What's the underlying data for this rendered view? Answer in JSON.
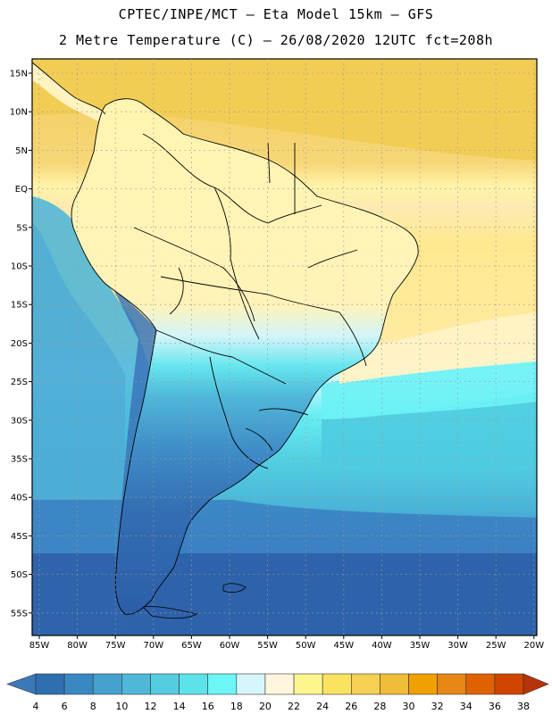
{
  "header": {
    "line1": "CPTEC/INPE/MCT –  Eta Model 15km – GFS",
    "line2": "2 Metre Temperature (C) – 26/08/2020 12UTC fct=208h"
  },
  "axes": {
    "lat_labels": [
      "15N",
      "10N",
      "5N",
      "EQ",
      "5S",
      "10S",
      "15S",
      "20S",
      "25S",
      "30S",
      "35S",
      "40S",
      "45S",
      "50S",
      "55S"
    ],
    "lon_labels": [
      "85W",
      "80W",
      "75W",
      "70W",
      "65W",
      "60W",
      "55W",
      "50W",
      "45W",
      "40W",
      "35W",
      "30W",
      "25W",
      "20W"
    ]
  },
  "colorbar": {
    "labels": [
      "4",
      "6",
      "8",
      "10",
      "12",
      "14",
      "16",
      "18",
      "20",
      "22",
      "24",
      "26",
      "28",
      "30",
      "32",
      "34",
      "36",
      "38"
    ],
    "colors": [
      "#3a79b8",
      "#2f6fb0",
      "#3a88c2",
      "#45a2cf",
      "#4fb8d8",
      "#55cde0",
      "#5ce3ea",
      "#6cf6f8",
      "#d6f6fb",
      "#fff6dd",
      "#fff58f",
      "#fbe35f",
      "#f5d052",
      "#efbd3a",
      "#f0a000",
      "#e88615",
      "#df6200",
      "#cf4500",
      "#b8320a"
    ]
  },
  "colors": {
    "deep_ocean": "#2f5fa8",
    "mid_ocean": "#3f8ec9",
    "cool_ocean": "#47b5d9",
    "warm_ocean": "#5ce5ee",
    "tropical_ocean": "#f5d470",
    "land_warm": "#fff3a8",
    "border": "#000000"
  }
}
